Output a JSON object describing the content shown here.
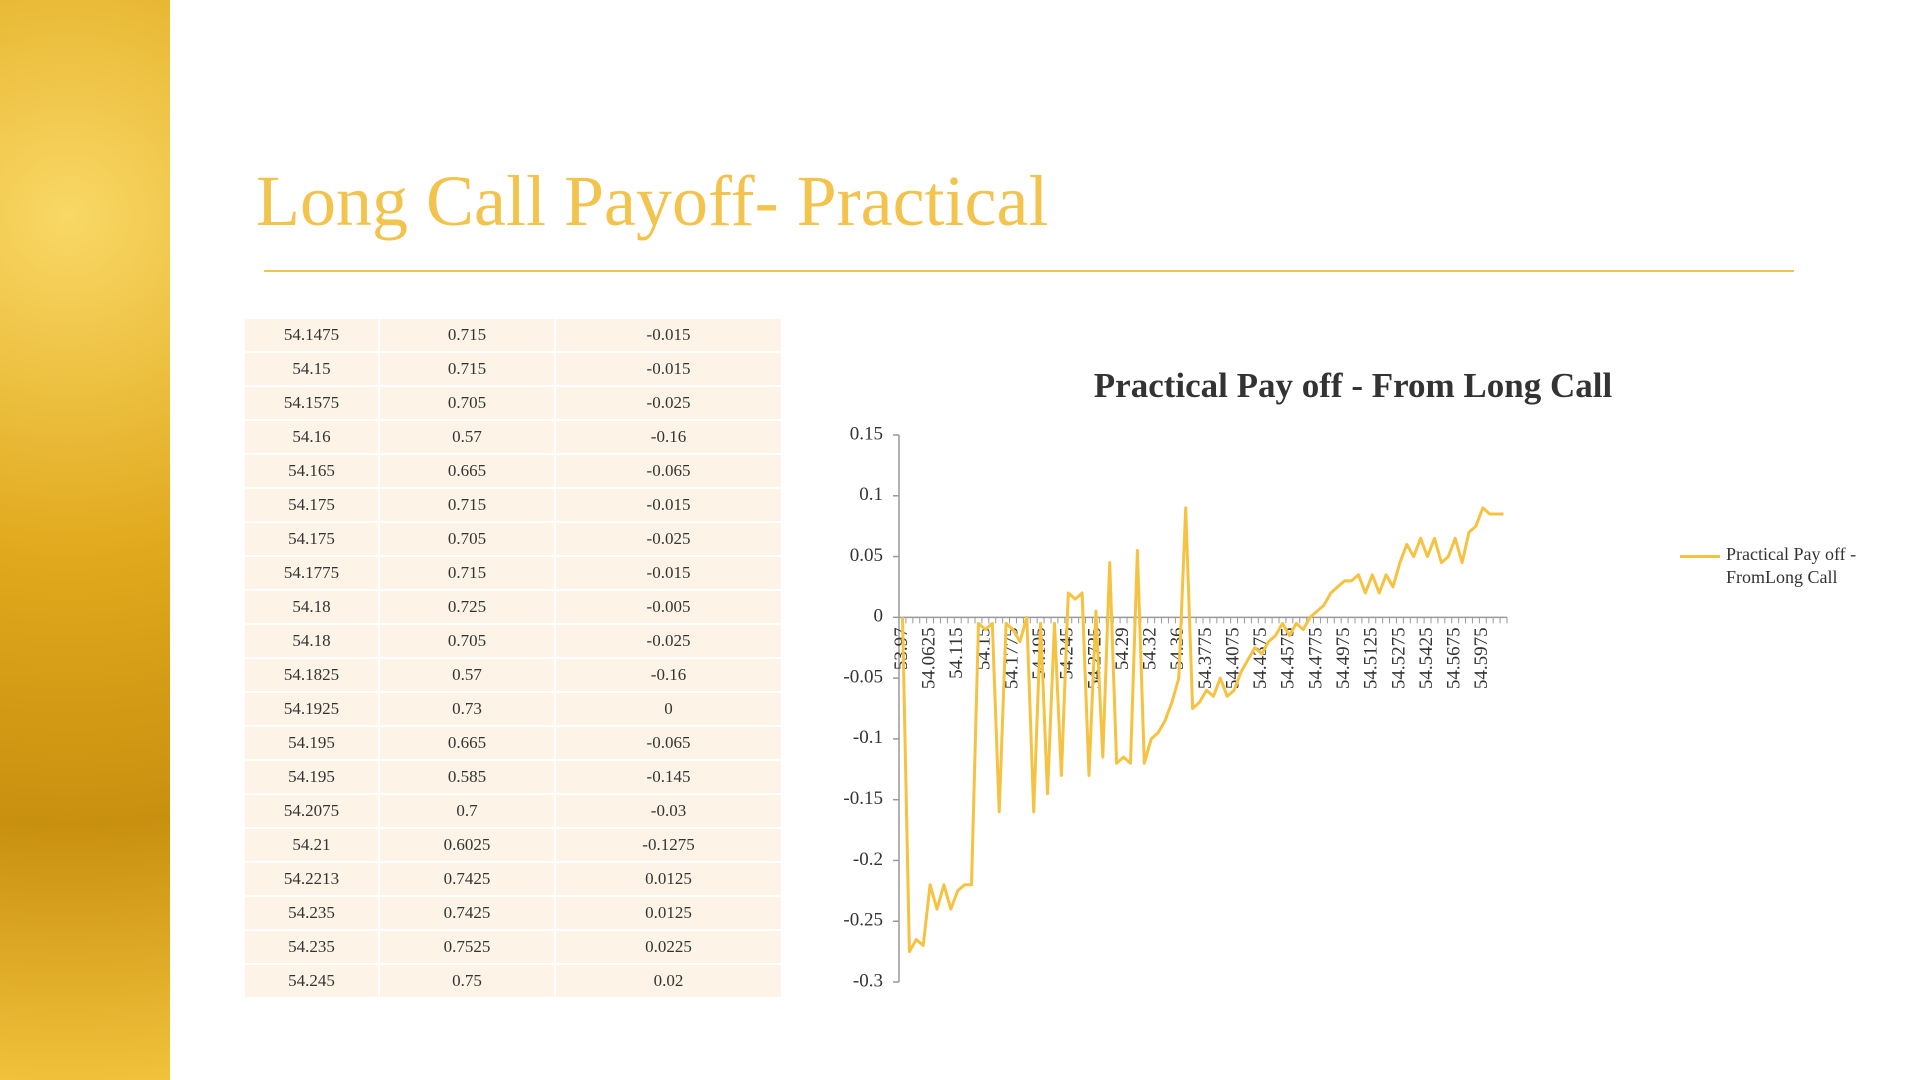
{
  "slide": {
    "title": "Long Call Payoff- Practical"
  },
  "table": {
    "rows": [
      [
        "54.1475",
        "0.715",
        "-0.015"
      ],
      [
        "54.15",
        "0.715",
        "-0.015"
      ],
      [
        "54.1575",
        "0.705",
        "-0.025"
      ],
      [
        "54.16",
        "0.57",
        "-0.16"
      ],
      [
        "54.165",
        "0.665",
        "-0.065"
      ],
      [
        "54.175",
        "0.715",
        "-0.015"
      ],
      [
        "54.175",
        "0.705",
        "-0.025"
      ],
      [
        "54.1775",
        "0.715",
        "-0.015"
      ],
      [
        "54.18",
        "0.725",
        "-0.005"
      ],
      [
        "54.18",
        "0.705",
        "-0.025"
      ],
      [
        "54.1825",
        "0.57",
        "-0.16"
      ],
      [
        "54.1925",
        "0.73",
        "0"
      ],
      [
        "54.195",
        "0.665",
        "-0.065"
      ],
      [
        "54.195",
        "0.585",
        "-0.145"
      ],
      [
        "54.2075",
        "0.7",
        "-0.03"
      ],
      [
        "54.21",
        "0.6025",
        "-0.1275"
      ],
      [
        "54.2213",
        "0.7425",
        "0.0125"
      ],
      [
        "54.235",
        "0.7425",
        "0.0125"
      ],
      [
        "54.235",
        "0.7525",
        "0.0225"
      ],
      [
        "54.245",
        "0.75",
        "0.02"
      ]
    ]
  },
  "chart_data": {
    "type": "line",
    "title": "Practical Pay off - From Long Call",
    "categories": [
      "53.97",
      null,
      null,
      null,
      "54.0625",
      null,
      null,
      null,
      "54.115",
      null,
      null,
      null,
      "54.15",
      null,
      null,
      null,
      "54.1775",
      null,
      null,
      null,
      "54.195",
      null,
      null,
      null,
      "54.245",
      null,
      null,
      null,
      "54.2725",
      null,
      null,
      null,
      "54.29",
      null,
      null,
      null,
      "54.32",
      null,
      null,
      null,
      "54.36",
      null,
      null,
      null,
      "54.3775",
      null,
      null,
      null,
      "54.4075",
      null,
      null,
      null,
      "54.4375",
      null,
      null,
      null,
      "54.4575",
      null,
      null,
      null,
      "54.4775",
      null,
      null,
      null,
      "54.4975",
      null,
      null,
      null,
      "54.5125",
      null,
      null,
      null,
      "54.5275",
      null,
      null,
      null,
      "54.5425",
      null,
      null,
      null,
      "54.5675",
      null,
      null,
      null,
      "54.5975",
      null,
      null,
      null
    ],
    "series": [
      {
        "name": "Practical Pay off - FromLong Call",
        "color": "#f5c242",
        "values": [
          0,
          -0.275,
          -0.265,
          -0.27,
          -0.22,
          -0.24,
          -0.22,
          -0.24,
          -0.225,
          -0.22,
          -0.22,
          -0.005,
          -0.01,
          -0.005,
          -0.16,
          -0.005,
          -0.01,
          -0.02,
          0,
          -0.16,
          -0.005,
          -0.145,
          -0.005,
          -0.13,
          0.02,
          0.015,
          0.02,
          -0.13,
          0.005,
          -0.115,
          0.045,
          -0.12,
          -0.115,
          -0.12,
          0.055,
          -0.12,
          -0.1,
          -0.095,
          -0.085,
          -0.07,
          -0.05,
          0.09,
          -0.075,
          -0.07,
          -0.06,
          -0.065,
          -0.05,
          -0.065,
          -0.06,
          -0.045,
          -0.035,
          -0.025,
          -0.03,
          -0.02,
          -0.015,
          -0.005,
          -0.015,
          -0.005,
          -0.01,
          0,
          0.005,
          0.01,
          0.02,
          0.025,
          0.03,
          0.03,
          0.035,
          0.02,
          0.035,
          0.02,
          0.035,
          0.025,
          0.045,
          0.06,
          0.05,
          0.065,
          0.05,
          0.065,
          0.045,
          0.05,
          0.065,
          0.045,
          0.07,
          0.075,
          0.09,
          0.085,
          0.085,
          0.085
        ]
      }
    ],
    "ylim": [
      -0.3,
      0.15
    ],
    "yticks": [
      -0.3,
      -0.25,
      -0.2,
      -0.15,
      -0.1,
      -0.05,
      0,
      0.05,
      0.1,
      0.15
    ],
    "grid": false,
    "legend": "right"
  }
}
